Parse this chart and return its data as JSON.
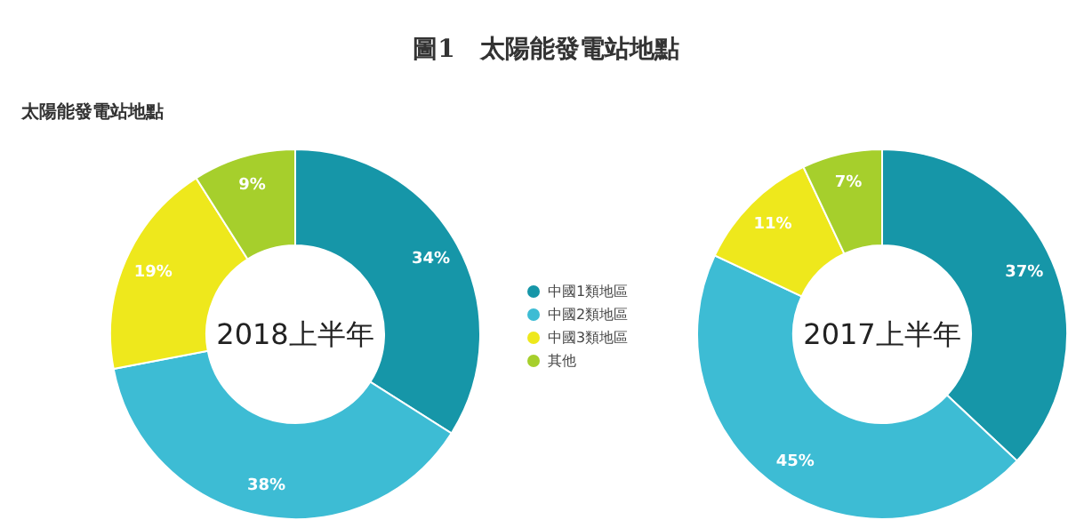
{
  "chart_data": [
    {
      "type": "donut",
      "title": "圖1　太陽能發電站地點",
      "subtitle": "太陽能發電站地點",
      "annotations": [
        "2018上半年"
      ],
      "legend": "right",
      "categories": [
        "中國1類地區",
        "中國2類地區",
        "中國3類地區",
        "其他"
      ],
      "values": [
        34,
        38,
        19,
        9
      ],
      "colors": [
        "#1696a8",
        "#3dbcd4",
        "#eee81c",
        "#a6cf2c"
      ],
      "value_labels": [
        "34%",
        "38%",
        "19%",
        "9%"
      ]
    },
    {
      "type": "donut",
      "annotations": [
        "2017上半年"
      ],
      "categories": [
        null,
        null,
        null,
        null
      ],
      "values": [
        37,
        45,
        11,
        7
      ],
      "colors": [
        "#1696a8",
        "#3dbcd4",
        "#eee81c",
        "#a6cf2c"
      ],
      "value_labels": [
        "37%",
        "45%",
        "11%",
        "7%"
      ]
    }
  ]
}
